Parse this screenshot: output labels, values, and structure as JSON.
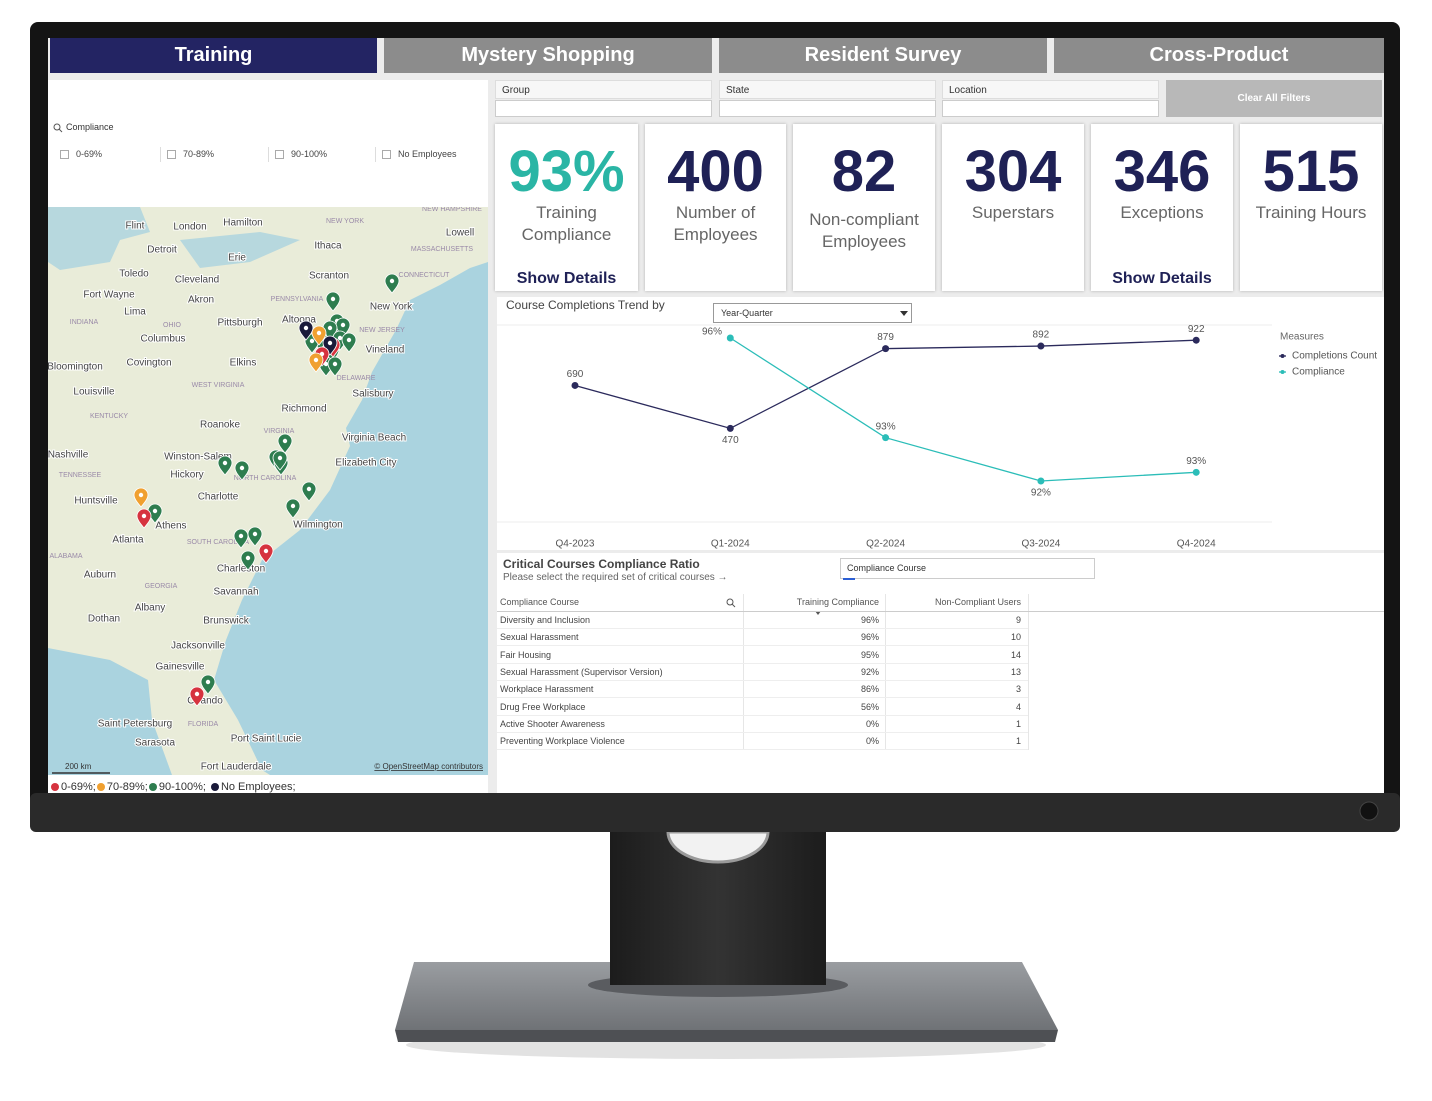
{
  "tabs": [
    "Training",
    "Mystery Shopping",
    "Resident Survey",
    "Cross-Product"
  ],
  "filters": {
    "fields": [
      "Group",
      "State",
      "Location"
    ],
    "clear": "Clear All Filters"
  },
  "compliance_filter": {
    "label": "Compliance",
    "options": [
      "0-69%",
      "70-89%",
      "90-100%",
      "No Employees"
    ]
  },
  "map": {
    "places": [
      "Flint",
      "London",
      "Hamilton",
      "Detroit",
      "Ithaca",
      "Lowell",
      "Erie",
      "Toledo",
      "Cleveland",
      "Scranton",
      "Fort Wayne",
      "Akron",
      "New York",
      "Lima",
      "Pittsburgh",
      "Altoona",
      "Columbus",
      "Vineland",
      "Bloomington",
      "Covington",
      "Elkins",
      "Louisville",
      "Salisbury",
      "Richmond",
      "Roanoke",
      "Virginia Beach",
      "Nashville",
      "Winston-Salem",
      "Elizabeth City",
      "Hickory",
      "Charlotte",
      "Huntsville",
      "Wilmington",
      "Athens",
      "Atlanta",
      "Charleston",
      "Auburn",
      "Savannah",
      "Albany",
      "Dothan",
      "Brunswick",
      "Jacksonville",
      "Gainesville",
      "Orlando",
      "Saint Petersburg",
      "Sarasota",
      "Port Saint Lucie",
      "Fort Lauderdale"
    ],
    "states": [
      "NEW YORK",
      "NEW HAMPSHIRE",
      "MASSACHUSETTS",
      "CONNECTICUT",
      "PENNSYLVANIA",
      "NEW JERSEY",
      "INDIANA",
      "OHIO",
      "DELAWARE",
      "WEST VIRGINIA",
      "KENTUCKY",
      "VIRGINIA",
      "TENNESSEE",
      "NORTH CAROLINA",
      "SOUTH CAROLINA",
      "ALABAMA",
      "GEORGIA",
      "FLORIDA"
    ],
    "scale": "200 km",
    "attribution": "© OpenStreetMap contributors",
    "legend": [
      "0-69%;",
      "70-89%;",
      "90-100%;",
      "No Employees;"
    ]
  },
  "kpis": [
    {
      "value": "93%",
      "label": "Training Compliance",
      "link": "Show Details"
    },
    {
      "value": 400,
      "label": "Number of Employees"
    },
    {
      "value": 82,
      "label": "Non-compliant Employees"
    },
    {
      "value": 304,
      "label": "Superstars"
    },
    {
      "value": 346,
      "label": "Exceptions",
      "link": "Show Details"
    },
    {
      "value": 515,
      "label": "Training Hours"
    }
  ],
  "chart_data": {
    "type": "line",
    "title": "Course Completions Trend by",
    "selector": "Year-Quarter",
    "legend_title": "Measures",
    "legend": "right",
    "categories": [
      "Q4-2023",
      "Q1-2024",
      "Q2-2024",
      "Q3-2024",
      "Q4-2024"
    ],
    "series": [
      {
        "name": "Completions Count",
        "color": "#2b2a5c",
        "values": [
          690,
          470,
          879,
          892,
          922
        ]
      },
      {
        "name": "Compliance",
        "color": "#2bbdb8",
        "axis": "y2",
        "values": [
          null,
          95.7,
          93.4,
          92.4,
          92.6
        ],
        "value_labels": [
          null,
          "96%",
          "93%",
          "92%",
          "93%"
        ]
      }
    ],
    "ylim": [
      0,
      1000
    ],
    "y2lim": [
      91.5,
      96
    ]
  },
  "table": {
    "title": "Critical Courses Compliance Ratio",
    "subtitle": "Please select the required set of critical courses →",
    "selector": "Compliance Course",
    "columns": [
      "Compliance Course",
      "Training Compliance",
      "Non-Compliant Users"
    ],
    "rows": [
      [
        "Diversity and Inclusion",
        "96%",
        9
      ],
      [
        "Sexual Harassment",
        "96%",
        10
      ],
      [
        "Fair Housing",
        "95%",
        14
      ],
      [
        "Sexual Harassment (Supervisor Version)",
        "92%",
        13
      ],
      [
        "Workplace Harassment",
        "86%",
        3
      ],
      [
        "Drug Free Workplace",
        "56%",
        4
      ],
      [
        "Active Shooter Awareness",
        "0%",
        1
      ],
      [
        "Preventing Workplace Violence",
        "0%",
        1
      ]
    ]
  }
}
